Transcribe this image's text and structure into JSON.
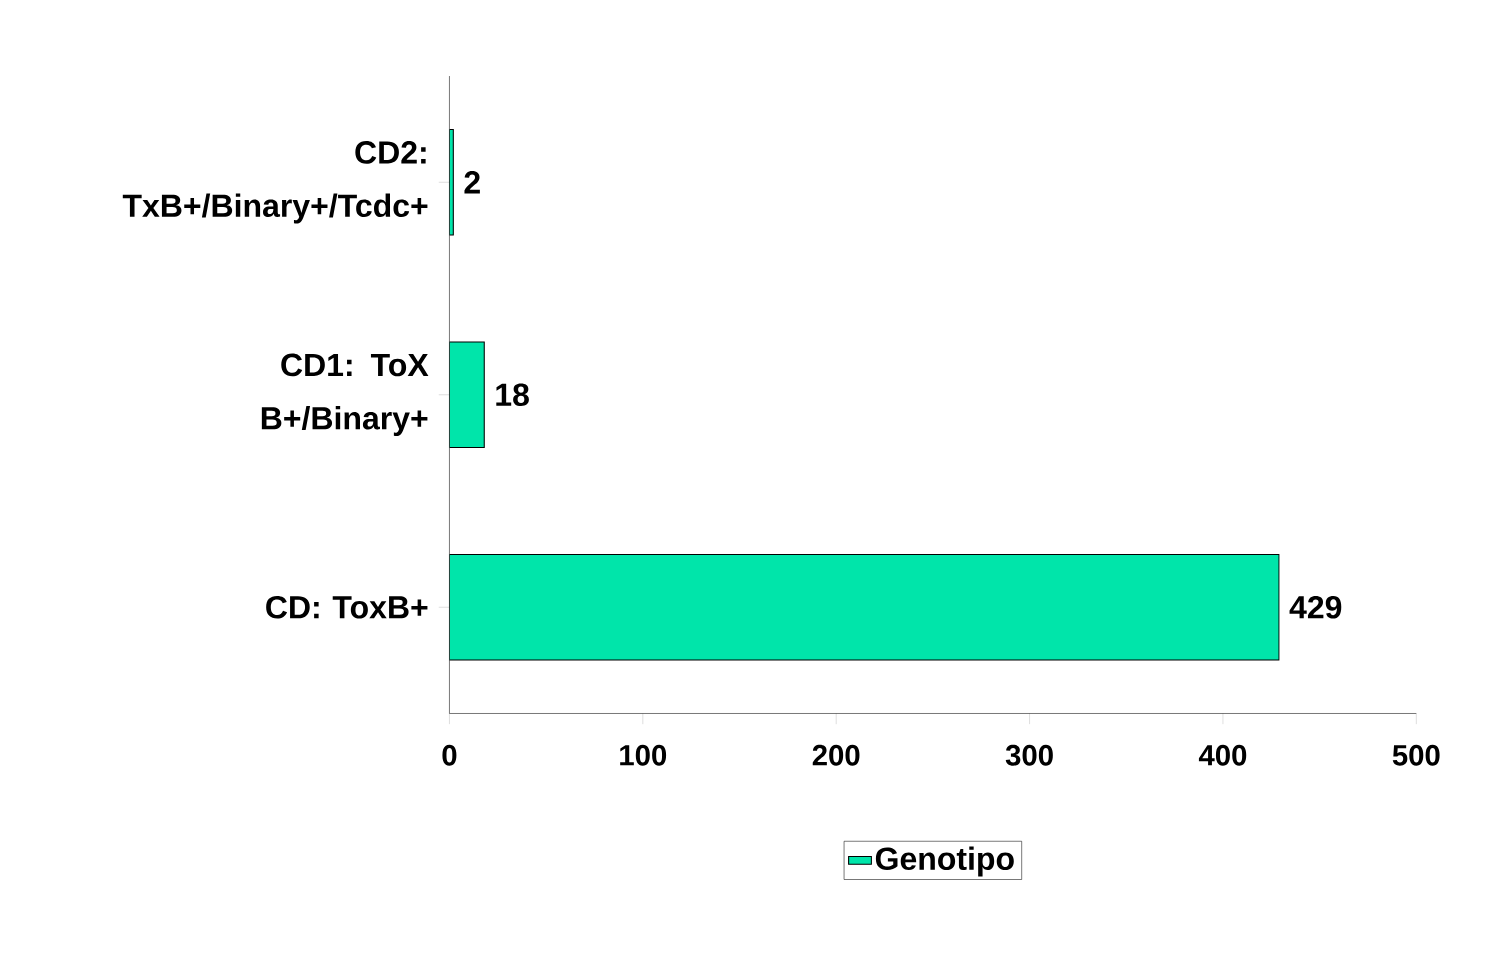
{
  "chart_data": {
    "type": "bar",
    "orientation": "horizontal",
    "categories": [
      "CD2: TxB+/Binary+/Tcdc+",
      "CD1: ToX B+/Binary+",
      "CD: ToxB+"
    ],
    "series": [
      {
        "name": "Genotipo",
        "color": "#00e5aa",
        "values": [
          2,
          18,
          429
        ]
      }
    ],
    "xlim": [
      0,
      500
    ],
    "xticks": [
      0,
      100,
      200,
      300,
      400,
      500
    ],
    "data_labels": true,
    "legend": "bottom",
    "grid": false
  }
}
